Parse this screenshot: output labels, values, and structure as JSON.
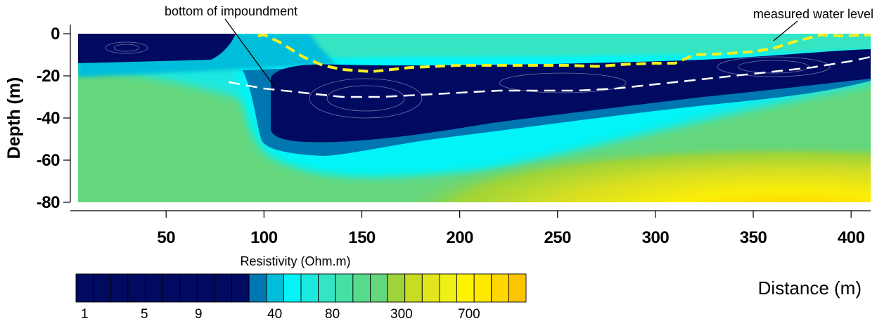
{
  "chart_data": {
    "type": "heatmap",
    "xlabel": "Distance (m)",
    "ylabel": "Depth (m)",
    "xlim": [
      5,
      410
    ],
    "ylim": [
      -80,
      0
    ],
    "x_ticks": [
      50,
      100,
      150,
      200,
      250,
      300,
      350,
      400
    ],
    "y_ticks": [
      0,
      -20,
      -40,
      -60,
      -80
    ],
    "annotations": [
      {
        "label": "bottom of impoundment",
        "target": [
          94,
          -25
        ]
      },
      {
        "label": "measured water level",
        "target": [
          362,
          -6
        ]
      }
    ],
    "series": [
      {
        "style": "yellow-dashed",
        "x": [
          97,
          100,
          108,
          120,
          130,
          140,
          155,
          175,
          200,
          230,
          255,
          270,
          285,
          300,
          310,
          320,
          335,
          350,
          360,
          372,
          385,
          395,
          410
        ],
        "y": [
          -1,
          -0.5,
          -4,
          -11,
          -15,
          -17,
          -18,
          -16,
          -15,
          -15,
          -15,
          -15.5,
          -14.5,
          -14,
          -14,
          -10,
          -9.5,
          -8.5,
          -7,
          -3.5,
          -0.5,
          -1,
          -0.5
        ]
      },
      {
        "style": "white-dashed",
        "x": [
          82,
          100,
          120,
          140,
          160,
          180,
          200,
          220,
          240,
          260,
          280,
          300,
          320,
          340,
          360,
          380,
          400,
          410
        ],
        "y": [
          -23,
          -26,
          -28,
          -30,
          -30,
          -29,
          -28,
          -27,
          -27,
          -27,
          -26,
          -24,
          -22,
          -20,
          -18,
          -16,
          -13,
          -11
        ]
      }
    ],
    "colorbar": {
      "title": "Resistivity (Ohm.m)",
      "tick_labels": [
        "1",
        "5",
        "9",
        "40",
        "80",
        "300",
        "700"
      ],
      "colors": [
        "#000a60",
        "#000a60",
        "#000a60",
        "#000a60",
        "#000a60",
        "#000a60",
        "#000a60",
        "#000a60",
        "#000a60",
        "#000a60",
        "#0077b0",
        "#00bedb",
        "#00f4f8",
        "#1de8e0",
        "#34e4c3",
        "#45e1a4",
        "#55db8b",
        "#64d67d",
        "#9dd43a",
        "#c7dc22",
        "#e3e51c",
        "#eff116",
        "#fdf400",
        "#fde800",
        "#fed700",
        "#ffc400"
      ]
    }
  }
}
